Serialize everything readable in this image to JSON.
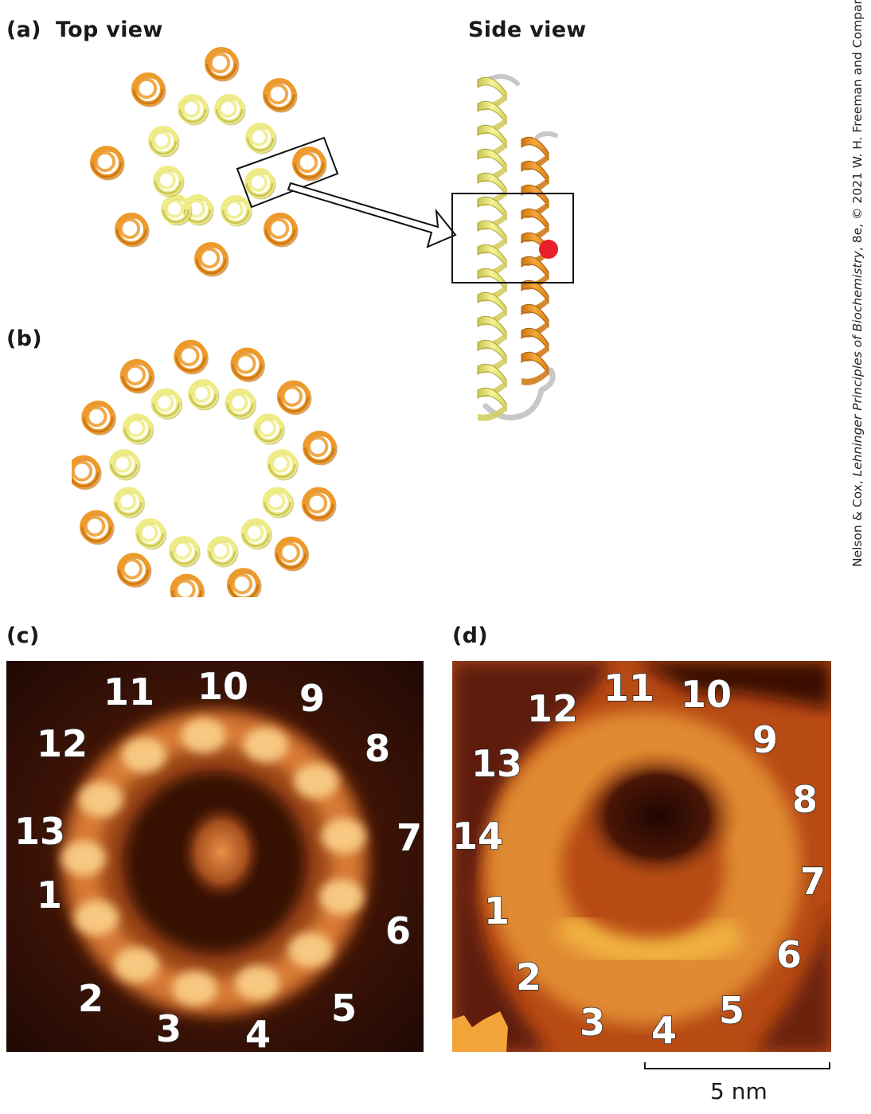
{
  "labels": {
    "a": "(a)",
    "top_view": "Top view",
    "side_view": "Side view",
    "b": "(b)",
    "c": "(c)",
    "d": "(d)"
  },
  "credit": {
    "prefix": "Nelson & Cox, ",
    "book": "Lehninger Principles of Biochemistry",
    "suffix": ", 8e, © 2021 W. H. Freeman and Company"
  },
  "ring_c_numbers": [
    "1",
    "2",
    "3",
    "4",
    "5",
    "6",
    "7",
    "8",
    "9",
    "10",
    "11",
    "12",
    "13"
  ],
  "ring_d_numbers": [
    "1",
    "2",
    "3",
    "4",
    "5",
    "6",
    "7",
    "8",
    "9",
    "10",
    "11",
    "12",
    "13",
    "14"
  ],
  "scale_bar": {
    "label": "5 nm"
  },
  "colors": {
    "yellow_helix": "#efec86",
    "orange_helix": "#ee9a2a",
    "marker": "#e8202a",
    "loop": "#c8c8c8"
  }
}
